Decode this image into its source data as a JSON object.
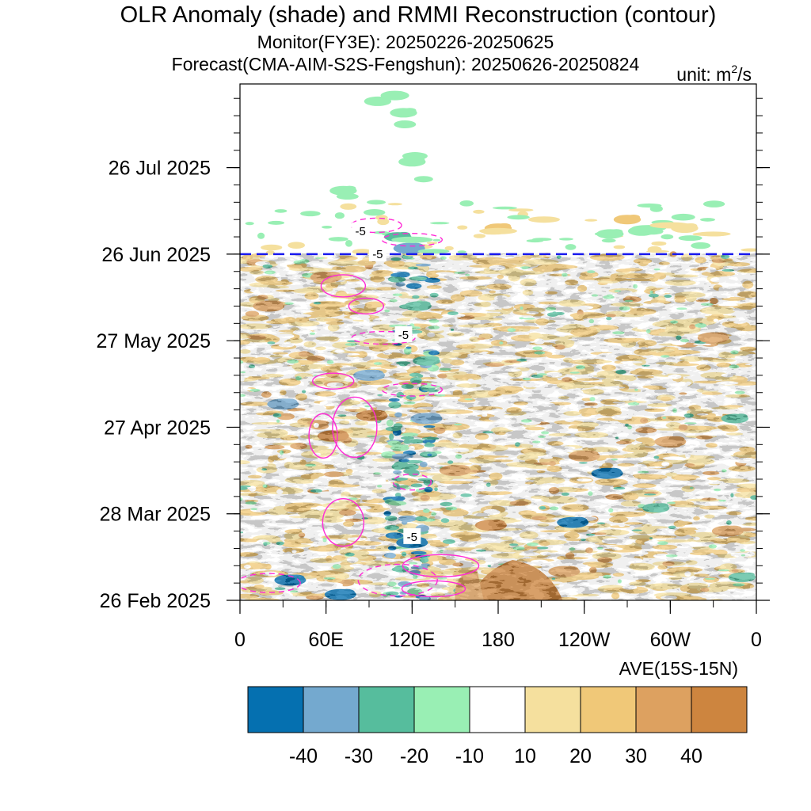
{
  "chart_data": {
    "type": "heatmap",
    "title": "OLR Anomaly (shade) and RMMI Reconstruction (contour)",
    "subtitle_monitor": "Monitor(FY3E): 20250226-20250625",
    "subtitle_forecast": "Forecast(CMA-AIM-S2S-Fengshun): 20250626-20250824",
    "unit_prefix": "unit: m",
    "unit_exp": "2",
    "unit_suffix": "/s",
    "xlabel": "AVE(15S-15N)",
    "x_range_deg": [
      0,
      360
    ],
    "x_ticks": [
      {
        "deg": 0,
        "label": "0"
      },
      {
        "deg": 60,
        "label": "60E"
      },
      {
        "deg": 120,
        "label": "120E"
      },
      {
        "deg": 180,
        "label": "180"
      },
      {
        "deg": 240,
        "label": "120W"
      },
      {
        "deg": 300,
        "label": "60W"
      },
      {
        "deg": 360,
        "label": "0"
      }
    ],
    "y_range": [
      "2025-02-26",
      "2025-08-24"
    ],
    "y_ticks": [
      {
        "date": "2025-02-26",
        "label": "26 Feb 2025"
      },
      {
        "date": "2025-03-28",
        "label": "28 Mar 2025"
      },
      {
        "date": "2025-04-27",
        "label": "27 Apr 2025"
      },
      {
        "date": "2025-05-27",
        "label": "27 May 2025"
      },
      {
        "date": "2025-06-26",
        "label": "26 Jun 2025"
      },
      {
        "date": "2025-07-26",
        "label": "26 Jul 2025"
      }
    ],
    "monitor_end_date": "2025-06-25",
    "forecast_start_date": "2025-06-26",
    "divider_color": "#1a1aee",
    "contour_color": "#ff2bd6",
    "contour_labels": [
      {
        "deg": 84,
        "date": "2025-07-04",
        "text": "-5"
      },
      {
        "deg": 96,
        "date": "2025-06-26",
        "text": "-5"
      },
      {
        "deg": 114,
        "date": "2025-05-29",
        "text": "-5"
      },
      {
        "deg": 120,
        "date": "2025-03-20",
        "text": "-5"
      }
    ],
    "colorbar": {
      "colors": [
        "#0570b0",
        "#74a9cf",
        "#56bd9d",
        "#99efb4",
        "#ffffff",
        "#f5e09e",
        "#f0c878",
        "#dda160",
        "#cd853f"
      ],
      "labels": [
        "-40",
        "-30",
        "-20",
        "-10",
        "10",
        "20",
        "30",
        "40"
      ]
    },
    "anomaly_features": [
      {
        "deg": 96,
        "date": "2025-08-18",
        "level": -10
      },
      {
        "deg": 114,
        "date": "2025-08-14",
        "level": -10
      },
      {
        "deg": 120,
        "date": "2025-07-28",
        "level": -10
      },
      {
        "deg": 72,
        "date": "2025-07-18",
        "level": -10
      },
      {
        "deg": 110,
        "date": "2025-07-02",
        "level": -20
      },
      {
        "deg": 118,
        "date": "2025-06-28",
        "level": -30
      },
      {
        "deg": 258,
        "date": "2025-07-03",
        "level": -10
      },
      {
        "deg": 280,
        "date": "2025-07-04",
        "level": -10
      },
      {
        "deg": 270,
        "date": "2025-07-08",
        "level": 20
      },
      {
        "deg": 180,
        "date": "2025-07-05",
        "level": 20
      },
      {
        "deg": 310,
        "date": "2025-07-05",
        "level": 10
      },
      {
        "deg": 190,
        "date": "2025-03-06",
        "level": 40
      },
      {
        "deg": 168,
        "date": "2025-03-02",
        "level": 40
      },
      {
        "deg": 226,
        "date": "2025-03-08",
        "level": 30
      },
      {
        "deg": 20,
        "date": "2025-06-08",
        "level": 30
      },
      {
        "deg": 60,
        "date": "2025-06-18",
        "level": 30
      },
      {
        "deg": 65,
        "date": "2025-04-24",
        "level": 40
      },
      {
        "deg": 92,
        "date": "2025-05-01",
        "level": 40
      },
      {
        "deg": 150,
        "date": "2025-04-12",
        "level": 30
      },
      {
        "deg": 175,
        "date": "2025-03-24",
        "level": 40
      },
      {
        "deg": 240,
        "date": "2025-04-17",
        "level": 30
      },
      {
        "deg": 300,
        "date": "2025-04-22",
        "level": 30
      },
      {
        "deg": 330,
        "date": "2025-05-28",
        "level": 30
      },
      {
        "deg": 340,
        "date": "2025-03-22",
        "level": 30
      },
      {
        "deg": 40,
        "date": "2025-03-30",
        "level": 20
      },
      {
        "deg": 240,
        "date": "2025-05-30",
        "level": 20
      },
      {
        "deg": 120,
        "date": "2025-03-18",
        "level": -40
      },
      {
        "deg": 130,
        "date": "2025-04-30",
        "level": -30
      },
      {
        "deg": 130,
        "date": "2025-05-20",
        "level": -20
      },
      {
        "deg": 124,
        "date": "2025-06-08",
        "level": -20
      },
      {
        "deg": 90,
        "date": "2025-05-15",
        "level": -30
      },
      {
        "deg": 30,
        "date": "2025-05-05",
        "level": -30
      },
      {
        "deg": 70,
        "date": "2025-02-28",
        "level": -40
      },
      {
        "deg": 35,
        "date": "2025-03-05",
        "level": -40
      },
      {
        "deg": 232,
        "date": "2025-03-25",
        "level": -40
      },
      {
        "deg": 256,
        "date": "2025-04-11",
        "level": -40
      },
      {
        "deg": 290,
        "date": "2025-03-30",
        "level": -20
      },
      {
        "deg": 350,
        "date": "2025-03-06",
        "level": -20
      },
      {
        "deg": 345,
        "date": "2025-04-30",
        "level": -20
      }
    ]
  }
}
